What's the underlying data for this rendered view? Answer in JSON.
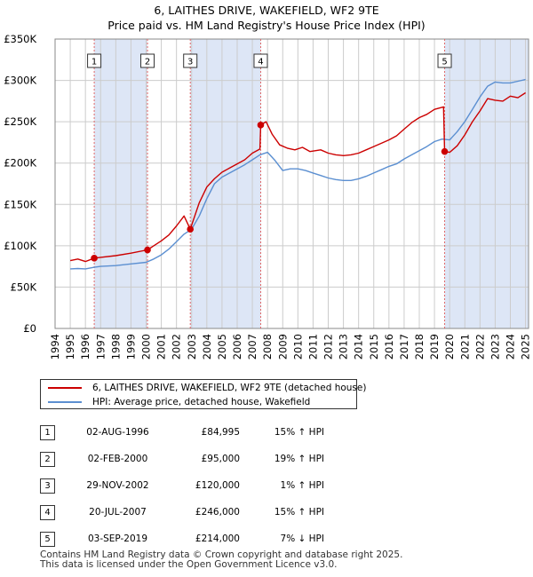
{
  "title_line1": "6, LAITHES DRIVE, WAKEFIELD, WF2 9TE",
  "title_line2": "Price paid vs. HM Land Registry's House Price Index (HPI)",
  "colors": {
    "property": "#cc0000",
    "hpi": "#5b8fd1",
    "shade": "#dde6f6",
    "marker": "#cc0000",
    "vline": "#e06666"
  },
  "legend": {
    "property_label": "6, LAITHES DRIVE, WAKEFIELD, WF2 9TE (detached house)",
    "hpi_label": "HPI: Average price, detached house, Wakefield"
  },
  "sales": [
    {
      "n": "1",
      "date": "02-AUG-1996",
      "price": "£84,995",
      "hpi": "15% ↑ HPI"
    },
    {
      "n": "2",
      "date": "02-FEB-2000",
      "price": "£95,000",
      "hpi": "19% ↑ HPI"
    },
    {
      "n": "3",
      "date": "29-NOV-2002",
      "price": "£120,000",
      "hpi": "1% ↑ HPI"
    },
    {
      "n": "4",
      "date": "20-JUL-2007",
      "price": "£246,000",
      "hpi": "15% ↑ HPI"
    },
    {
      "n": "5",
      "date": "03-SEP-2019",
      "price": "£214,000",
      "hpi": "7% ↓ HPI"
    }
  ],
  "footer_line1": "Contains HM Land Registry data © Crown copyright and database right 2025.",
  "footer_line2": "This data is licensed under the Open Government Licence v3.0.",
  "chart_data": {
    "type": "line",
    "title": "Price paid vs. HM Land Registry's House Price Index (HPI)",
    "xlabel": "",
    "ylabel": "",
    "xlim": [
      1994,
      2025.2
    ],
    "ylim": [
      0,
      350000
    ],
    "y_ticks": [
      0,
      50000,
      100000,
      150000,
      200000,
      250000,
      300000,
      350000
    ],
    "y_tick_labels": [
      "£0",
      "£50K",
      "£100K",
      "£150K",
      "£200K",
      "£250K",
      "£300K",
      "£350K"
    ],
    "x_ticks": [
      1994,
      1995,
      1996,
      1997,
      1998,
      1999,
      2000,
      2001,
      2002,
      2003,
      2004,
      2005,
      2006,
      2007,
      2008,
      2009,
      2010,
      2011,
      2012,
      2013,
      2014,
      2015,
      2016,
      2017,
      2018,
      2019,
      2020,
      2021,
      2022,
      2023,
      2024,
      2025
    ],
    "grid": true,
    "sale_points": [
      {
        "label": "1",
        "x": 1996.58,
        "y": 84995
      },
      {
        "label": "2",
        "x": 2000.09,
        "y": 95000
      },
      {
        "label": "3",
        "x": 2002.91,
        "y": 120000
      },
      {
        "label": "4",
        "x": 2007.55,
        "y": 246000
      },
      {
        "label": "5",
        "x": 2019.67,
        "y": 214000
      }
    ],
    "series": [
      {
        "name": "6, LAITHES DRIVE, WAKEFIELD, WF2 9TE (detached house)",
        "x": [
          1995,
          1995.5,
          1996,
          1996.58,
          1997,
          1998,
          1999,
          2000.09,
          2000.5,
          2001,
          2001.5,
          2002,
          2002.5,
          2002.91,
          2003.5,
          2004,
          2004.5,
          2005,
          2005.5,
          2006,
          2006.5,
          2007,
          2007.5,
          2007.55,
          2007.9,
          2008.3,
          2008.8,
          2009.3,
          2009.8,
          2010.3,
          2010.8,
          2011.5,
          2012,
          2012.5,
          2013,
          2013.5,
          2014,
          2014.5,
          2015,
          2015.5,
          2016,
          2016.5,
          2017,
          2017.5,
          2018,
          2018.5,
          2019,
          2019.6,
          2019.67,
          2020,
          2020.5,
          2021,
          2021.5,
          2022,
          2022.5,
          2023,
          2023.5,
          2024,
          2024.5,
          2025
        ],
        "y": [
          82000,
          84000,
          81000,
          84995,
          86000,
          88000,
          91000,
          95000,
          100000,
          106000,
          113000,
          124000,
          136000,
          120000,
          152000,
          171000,
          181000,
          189000,
          194000,
          199000,
          204000,
          212000,
          217000,
          246000,
          250000,
          235000,
          222000,
          218000,
          216000,
          219000,
          214000,
          216000,
          212000,
          210000,
          209000,
          210000,
          212000,
          216000,
          220000,
          224000,
          228000,
          233000,
          241000,
          249000,
          255000,
          259000,
          265000,
          268000,
          214000,
          213000,
          221000,
          234000,
          250000,
          263000,
          278000,
          276000,
          275000,
          281000,
          279000,
          285000
        ]
      },
      {
        "name": "HPI: Average price, detached house, Wakefield",
        "x": [
          1995,
          1995.5,
          1996,
          1996.58,
          1997,
          1998,
          1999,
          2000,
          2000.5,
          2001,
          2001.5,
          2002,
          2002.5,
          2003,
          2003.5,
          2004,
          2004.5,
          2005,
          2005.5,
          2006,
          2006.5,
          2007,
          2007.5,
          2008,
          2008.5,
          2009,
          2009.5,
          2010,
          2010.5,
          2011,
          2011.5,
          2012,
          2012.5,
          2013,
          2013.5,
          2014,
          2014.5,
          2015,
          2015.5,
          2016,
          2016.5,
          2017,
          2017.5,
          2018,
          2018.5,
          2019,
          2019.5,
          2020,
          2020.5,
          2021,
          2021.5,
          2022,
          2022.5,
          2023,
          2023.5,
          2024,
          2024.5,
          2025
        ],
        "y": [
          72000,
          72500,
          72000,
          74000,
          75000,
          76000,
          78000,
          80000,
          84000,
          89000,
          96000,
          105000,
          114000,
          120000,
          136000,
          157000,
          175000,
          183000,
          188000,
          193000,
          198000,
          204000,
          210000,
          213000,
          203000,
          191000,
          193000,
          193000,
          191000,
          188000,
          185000,
          182000,
          180000,
          179000,
          179000,
          181000,
          184000,
          188000,
          192000,
          196000,
          199000,
          205000,
          210000,
          215000,
          220000,
          226000,
          229000,
          228000,
          238000,
          250000,
          265000,
          280000,
          293000,
          298000,
          297000,
          297000,
          299000,
          301000
        ]
      }
    ]
  }
}
